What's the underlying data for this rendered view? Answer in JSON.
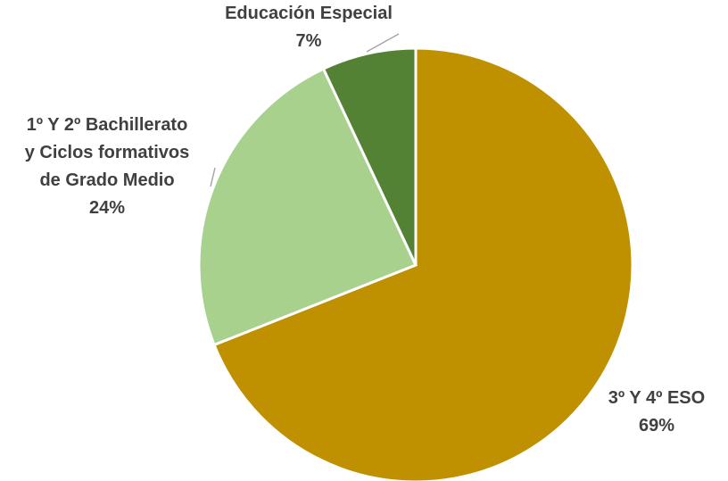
{
  "chart_data": {
    "type": "pie",
    "title": "",
    "start_angle_deg": 0,
    "direction": "clockwise",
    "slices": [
      {
        "label_lines": [
          "3º Y 4º ESO"
        ],
        "percent_label": "69%",
        "value": 69,
        "color": "#bf9000"
      },
      {
        "label_lines": [
          "1º Y 2º Bachillerato",
          "y Ciclos formativos",
          "de Grado Medio"
        ],
        "percent_label": "24%",
        "value": 24,
        "color": "#a9d18e"
      },
      {
        "label_lines": [
          "Educación Especial"
        ],
        "percent_label": "7%",
        "value": 7,
        "color": "#548235"
      }
    ],
    "legend": "none",
    "data_labels": "outside"
  }
}
